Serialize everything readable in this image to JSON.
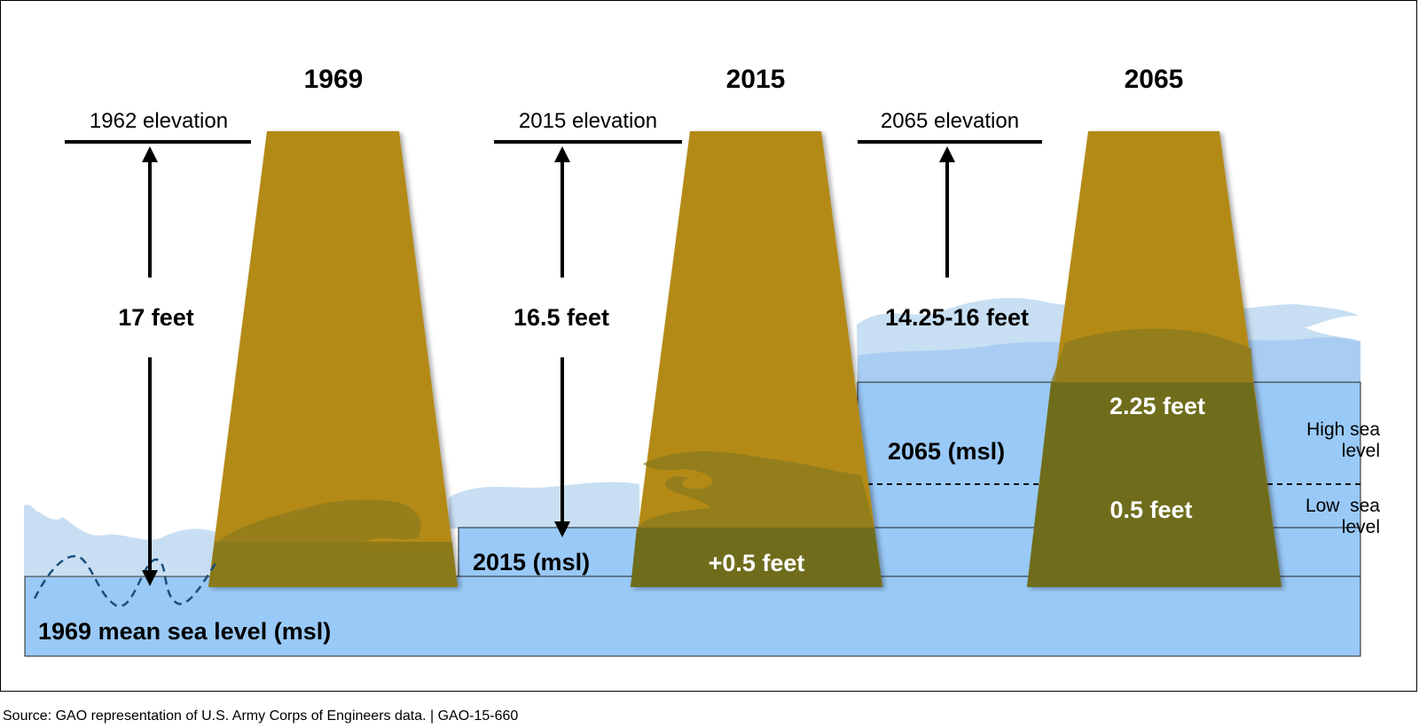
{
  "years": [
    "1969",
    "2015",
    "2065"
  ],
  "elevation_labels": [
    "1962 elevation",
    "2015 elevation",
    "2065 elevation"
  ],
  "heights": [
    "17 feet",
    "16.5 feet",
    "14.25-16 feet"
  ],
  "sea_levels": {
    "base": "1969 mean sea level (msl)",
    "level_2015": "2015 (msl)",
    "level_2065": "2065 (msl)"
  },
  "rises": {
    "rise_2015": "+0.5 feet",
    "high_2065": "2.25 feet",
    "low_2065": "0.5 feet"
  },
  "scenarios": {
    "high_line1": "High sea",
    "high_line2": "level",
    "low_line1": "Low  sea",
    "low_line2": "level"
  },
  "source": "Source: GAO representation of U.S. Army Corps of Engineers data.  | GAO-15-660",
  "colors": {
    "levee": "#b38a17",
    "levee_submerged": "#6f6d1c",
    "water": "#99c9f7",
    "wave_light": "#c8dff3",
    "wave_mid": "#a9cdf2",
    "dashed_wave": "#1c4e7a"
  }
}
